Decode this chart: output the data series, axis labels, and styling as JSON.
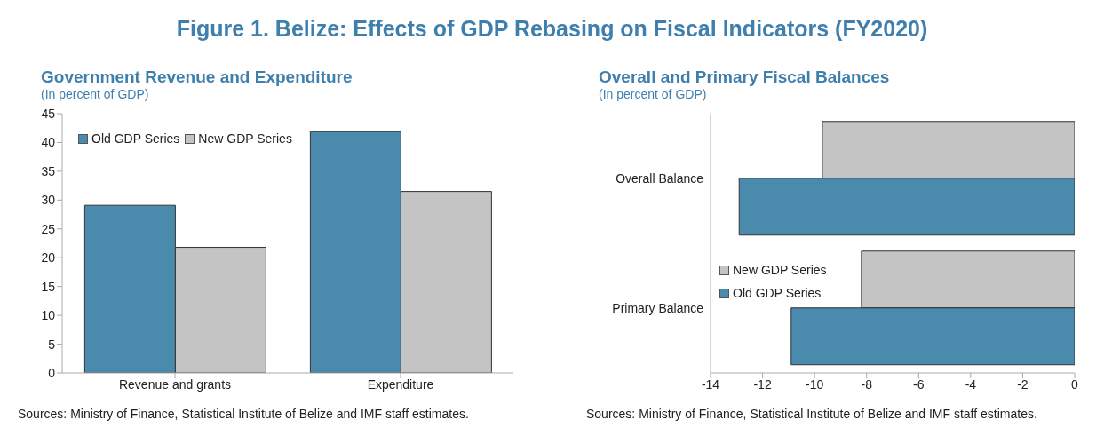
{
  "chart_data": [
    {
      "type": "bar",
      "title": "Government Revenue and Expenditure",
      "subtitle": "(In percent of GDP)",
      "categories": [
        "Revenue and grants",
        "Expenditure"
      ],
      "series": [
        {
          "name": "Old GDP Series",
          "color": "#4a8bad",
          "values": [
            29.1,
            41.9
          ]
        },
        {
          "name": "New GDP Series",
          "color": "#c4c4c4",
          "values": [
            21.8,
            31.5
          ]
        }
      ],
      "ylim": [
        0,
        45
      ],
      "yticks": [
        0,
        5,
        10,
        15,
        20,
        25,
        30,
        35,
        40,
        45
      ],
      "legend": "top left",
      "annotations": [
        "Figure 1. Belize: Effects of GDP Rebasing on Fiscal Indicators (FY2020)",
        "Sources: Ministry of Finance, Statistical Institute of Belize and IMF staff estimates."
      ]
    },
    {
      "type": "bar",
      "orientation": "horizontal",
      "title": "Overall and Primary Fiscal Balances",
      "subtitle": "(In percent of GDP)",
      "categories": [
        "Overall Balance",
        "Primary Balance"
      ],
      "series": [
        {
          "name": "New GDP Series",
          "color": "#c4c4c4",
          "values": [
            -9.7,
            -8.2
          ]
        },
        {
          "name": "Old GDP Series",
          "color": "#4a8bad",
          "values": [
            -12.9,
            -10.9
          ]
        }
      ],
      "xlim": [
        -14,
        0
      ],
      "xticks": [
        -14,
        -12,
        -10,
        -8,
        -6,
        -4,
        -2,
        0
      ],
      "legend": "bottom left",
      "annotations": [
        "Sources: Ministry of Finance, Statistical Institute of Belize and IMF staff estimates."
      ]
    }
  ]
}
